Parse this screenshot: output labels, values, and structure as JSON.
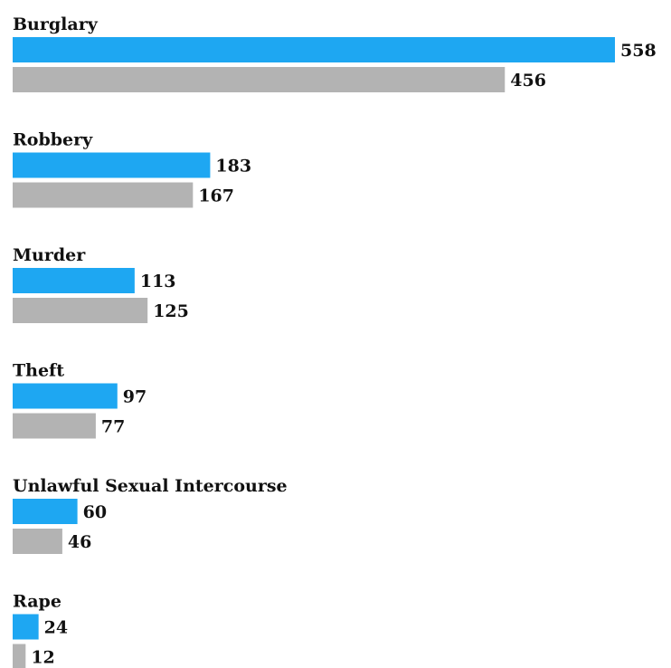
{
  "chart_data": {
    "type": "bar",
    "orientation": "horizontal",
    "categories": [
      "Burglary",
      "Robbery",
      "Murder",
      "Theft",
      "Unlawful Sexual Intercourse",
      "Rape"
    ],
    "series": [
      {
        "values": [
          558,
          183,
          113,
          97,
          60,
          24
        ],
        "color": "#1ea7f2"
      },
      {
        "values": [
          456,
          167,
          125,
          77,
          46,
          12
        ],
        "color": "#b3b3b3"
      }
    ],
    "title": "",
    "xlabel": "",
    "ylabel": "",
    "xlim": [
      0,
      558
    ],
    "grid": false,
    "legend": "none"
  }
}
